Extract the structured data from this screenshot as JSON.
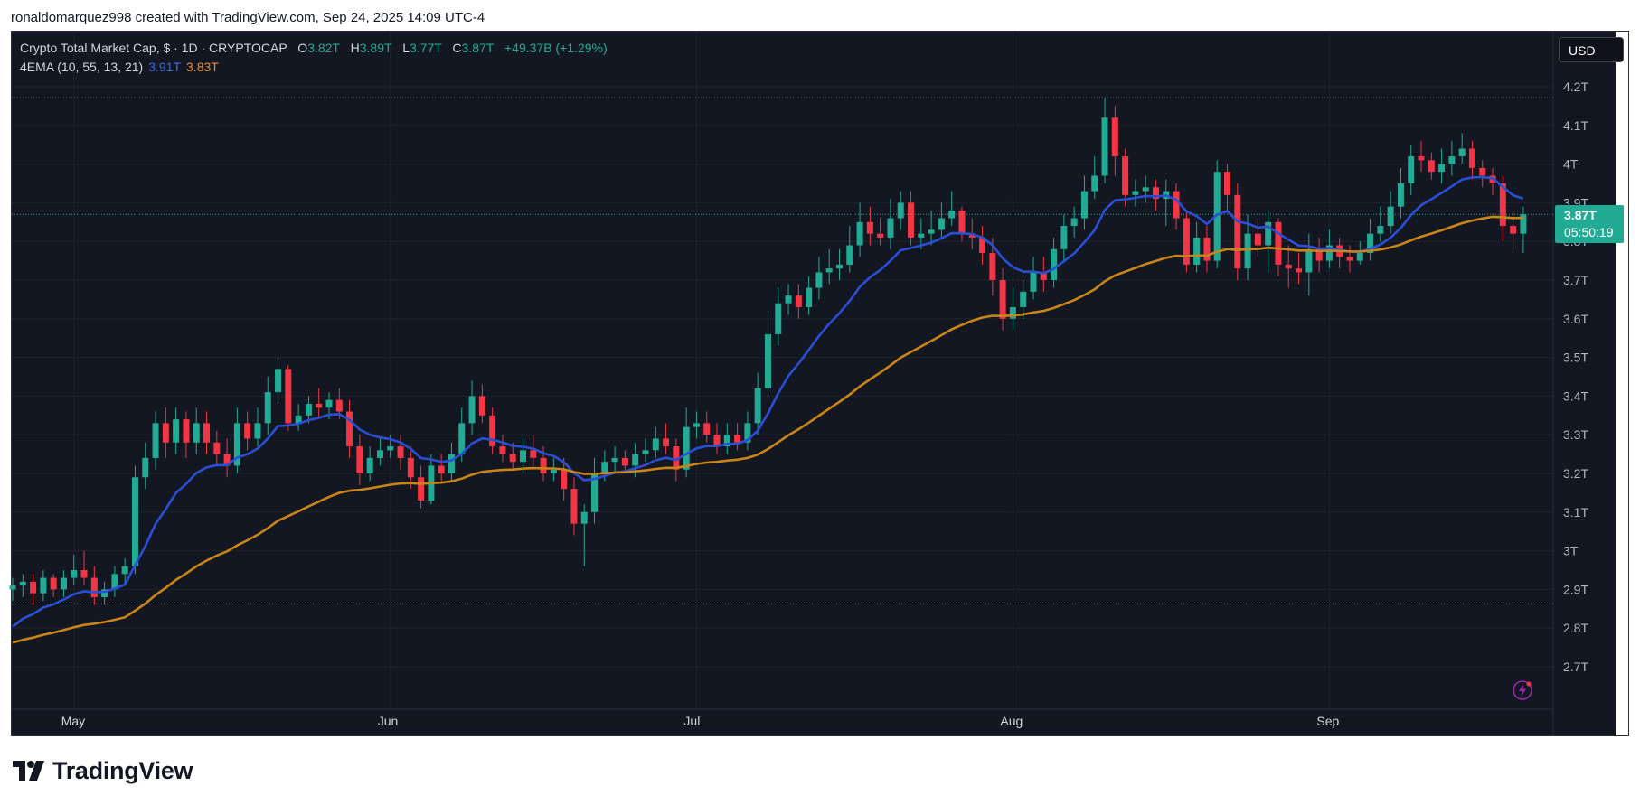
{
  "header": {
    "credit": "ronaldomarquez998 created with TradingView.com, Sep 24, 2025 14:09 UTC-4"
  },
  "legend": {
    "symbol": "Crypto Total Market Cap, $ · 1D · CRYPTOCAP",
    "o_label": "O",
    "o_value": "3.82T",
    "h_label": "H",
    "h_value": "3.89T",
    "l_label": "L",
    "l_value": "3.77T",
    "c_label": "C",
    "c_value": "3.87T",
    "change": "+49.37B (+1.29%)",
    "indicator": "4EMA (10, 55, 13, 21)",
    "ema_fast": "3.91T",
    "ema_slow": "3.83T"
  },
  "toolbar": {
    "currency": "USD"
  },
  "price_tag": {
    "price": "3.87T",
    "countdown": "05:50:19"
  },
  "brand": {
    "name": "TradingView",
    "logo_icon": "tradingview-logo-icon"
  },
  "colors": {
    "up": "#22ab94",
    "down": "#f23645",
    "ema_fast": "#2a4fd6",
    "ema_slow": "#c98516",
    "background": "#131722"
  },
  "chart_data": {
    "type": "candlestick",
    "title": "Crypto Total Market Cap, $ · 1D · CRYPTOCAP",
    "unit": "USD",
    "ylim": [
      2.64,
      4.22
    ],
    "y_ticks": [
      "2.7T",
      "2.8T",
      "2.9T",
      "3T",
      "3.1T",
      "3.2T",
      "3.3T",
      "3.4T",
      "3.5T",
      "3.6T",
      "3.7T",
      "3.8T",
      "3.9T",
      "4T",
      "4.1T",
      "4.2T"
    ],
    "y_tick_values": [
      2.7,
      2.8,
      2.9,
      3.0,
      3.1,
      3.2,
      3.3,
      3.4,
      3.5,
      3.6,
      3.7,
      3.8,
      3.9,
      4.0,
      4.1,
      4.2
    ],
    "x_ticks": [
      {
        "label": "May",
        "date": "2025-05-01"
      },
      {
        "label": "Jun",
        "date": "2025-06-01"
      },
      {
        "label": "Jul",
        "date": "2025-07-01"
      },
      {
        "label": "Aug",
        "date": "2025-08-01"
      },
      {
        "label": "Sep",
        "date": "2025-09-01"
      }
    ],
    "start_date": "2025-04-25",
    "closes": [
      2.91,
      2.92,
      2.89,
      2.93,
      2.9,
      2.93,
      2.95,
      2.93,
      2.88,
      2.9,
      2.94,
      2.96,
      3.19,
      3.24,
      3.33,
      3.28,
      3.34,
      3.28,
      3.33,
      3.28,
      3.25,
      3.22,
      3.33,
      3.29,
      3.33,
      3.41,
      3.47,
      3.33,
      3.35,
      3.38,
      3.37,
      3.39,
      3.36,
      3.27,
      3.2,
      3.24,
      3.26,
      3.27,
      3.24,
      3.19,
      3.13,
      3.22,
      3.2,
      3.25,
      3.33,
      3.4,
      3.35,
      3.27,
      3.25,
      3.23,
      3.26,
      3.24,
      3.2,
      3.21,
      3.16,
      3.07,
      3.1,
      3.2,
      3.23,
      3.24,
      3.22,
      3.25,
      3.26,
      3.29,
      3.27,
      3.21,
      3.32,
      3.33,
      3.3,
      3.27,
      3.3,
      3.28,
      3.33,
      3.42,
      3.56,
      3.64,
      3.66,
      3.63,
      3.68,
      3.72,
      3.73,
      3.74,
      3.79,
      3.85,
      3.82,
      3.81,
      3.86,
      3.9,
      3.81,
      3.82,
      3.83,
      3.86,
      3.88,
      3.82,
      3.81,
      3.77,
      3.7,
      3.6,
      3.63,
      3.67,
      3.72,
      3.7,
      3.78,
      3.84,
      3.86,
      3.93,
      3.97,
      4.12,
      4.02,
      3.92,
      3.93,
      3.94,
      3.91,
      3.93,
      3.86,
      3.74,
      3.81,
      3.75,
      3.98,
      3.92,
      3.73,
      3.82,
      3.79,
      3.85,
      3.74,
      3.73,
      3.72,
      3.78,
      3.75,
      3.79,
      3.76,
      3.75,
      3.77,
      3.82,
      3.84,
      3.89,
      3.95,
      4.02,
      4.01,
      3.98,
      4.0,
      4.02,
      4.04,
      3.99,
      3.97,
      3.95,
      3.84,
      3.82,
      3.87
    ],
    "opens": [
      2.9,
      2.91,
      2.92,
      2.89,
      2.93,
      2.9,
      2.93,
      2.95,
      2.93,
      2.88,
      2.9,
      2.94,
      2.96,
      3.19,
      3.24,
      3.33,
      3.28,
      3.34,
      3.28,
      3.33,
      3.28,
      3.25,
      3.22,
      3.33,
      3.29,
      3.33,
      3.41,
      3.47,
      3.33,
      3.35,
      3.38,
      3.37,
      3.39,
      3.36,
      3.27,
      3.2,
      3.24,
      3.26,
      3.27,
      3.24,
      3.19,
      3.13,
      3.22,
      3.2,
      3.25,
      3.33,
      3.4,
      3.35,
      3.27,
      3.25,
      3.23,
      3.26,
      3.24,
      3.2,
      3.21,
      3.16,
      3.07,
      3.1,
      3.2,
      3.23,
      3.24,
      3.22,
      3.25,
      3.26,
      3.29,
      3.27,
      3.21,
      3.32,
      3.33,
      3.3,
      3.27,
      3.3,
      3.28,
      3.33,
      3.42,
      3.56,
      3.64,
      3.66,
      3.63,
      3.68,
      3.72,
      3.73,
      3.74,
      3.79,
      3.85,
      3.82,
      3.81,
      3.86,
      3.9,
      3.81,
      3.82,
      3.83,
      3.86,
      3.88,
      3.82,
      3.81,
      3.77,
      3.7,
      3.6,
      3.63,
      3.67,
      3.72,
      3.7,
      3.78,
      3.84,
      3.86,
      3.93,
      3.97,
      4.12,
      4.02,
      3.92,
      3.93,
      3.94,
      3.91,
      3.93,
      3.86,
      3.74,
      3.81,
      3.75,
      3.98,
      3.92,
      3.73,
      3.82,
      3.79,
      3.85,
      3.74,
      3.73,
      3.72,
      3.78,
      3.75,
      3.79,
      3.76,
      3.75,
      3.77,
      3.82,
      3.84,
      3.89,
      3.95,
      4.02,
      4.01,
      3.98,
      4.0,
      4.02,
      4.04,
      3.99,
      3.97,
      3.95,
      3.84,
      3.82
    ],
    "highs": [
      2.93,
      2.94,
      2.94,
      2.95,
      2.94,
      2.95,
      2.99,
      3.0,
      2.96,
      2.92,
      2.96,
      2.98,
      3.22,
      3.28,
      3.36,
      3.37,
      3.37,
      3.36,
      3.37,
      3.36,
      3.31,
      3.29,
      3.37,
      3.36,
      3.37,
      3.45,
      3.5,
      3.48,
      3.38,
      3.4,
      3.42,
      3.41,
      3.42,
      3.39,
      3.3,
      3.27,
      3.29,
      3.3,
      3.3,
      3.27,
      3.22,
      3.25,
      3.25,
      3.28,
      3.37,
      3.44,
      3.43,
      3.37,
      3.3,
      3.28,
      3.29,
      3.3,
      3.27,
      3.24,
      3.24,
      3.19,
      3.12,
      3.24,
      3.26,
      3.27,
      3.26,
      3.28,
      3.29,
      3.32,
      3.33,
      3.29,
      3.37,
      3.36,
      3.36,
      3.33,
      3.33,
      3.33,
      3.36,
      3.46,
      3.61,
      3.68,
      3.69,
      3.69,
      3.71,
      3.76,
      3.78,
      3.78,
      3.84,
      3.9,
      3.89,
      3.86,
      3.91,
      3.93,
      3.93,
      3.86,
      3.88,
      3.9,
      3.93,
      3.89,
      3.86,
      3.84,
      3.81,
      3.73,
      3.68,
      3.7,
      3.76,
      3.76,
      3.81,
      3.87,
      3.89,
      3.97,
      4.02,
      4.17,
      4.15,
      4.04,
      3.96,
      3.97,
      3.96,
      3.96,
      3.95,
      3.88,
      3.85,
      3.84,
      4.01,
      4.0,
      3.95,
      3.87,
      3.86,
      3.88,
      3.86,
      3.79,
      3.77,
      3.82,
      3.81,
      3.83,
      3.81,
      3.79,
      3.8,
      3.86,
      3.89,
      3.93,
      3.99,
      4.05,
      4.06,
      4.03,
      4.04,
      4.06,
      4.08,
      4.06,
      4.01,
      3.99,
      3.97,
      3.88,
      3.89
    ],
    "lows": [
      2.87,
      2.88,
      2.86,
      2.87,
      2.88,
      2.88,
      2.91,
      2.91,
      2.86,
      2.86,
      2.88,
      2.91,
      2.94,
      3.16,
      3.21,
      3.24,
      3.25,
      3.24,
      3.25,
      3.25,
      3.22,
      3.19,
      3.2,
      3.26,
      3.27,
      3.3,
      3.38,
      3.31,
      3.31,
      3.33,
      3.34,
      3.34,
      3.34,
      3.24,
      3.17,
      3.18,
      3.22,
      3.24,
      3.21,
      3.16,
      3.11,
      3.12,
      3.18,
      3.18,
      3.23,
      3.3,
      3.33,
      3.25,
      3.23,
      3.21,
      3.2,
      3.22,
      3.18,
      3.18,
      3.13,
      3.04,
      2.96,
      3.07,
      3.18,
      3.2,
      3.2,
      3.19,
      3.23,
      3.24,
      3.25,
      3.18,
      3.19,
      3.29,
      3.28,
      3.25,
      3.25,
      3.26,
      3.26,
      3.3,
      3.4,
      3.53,
      3.61,
      3.6,
      3.61,
      3.65,
      3.69,
      3.7,
      3.72,
      3.76,
      3.79,
      3.79,
      3.78,
      3.83,
      3.79,
      3.78,
      3.79,
      3.81,
      3.84,
      3.8,
      3.78,
      3.74,
      3.66,
      3.57,
      3.57,
      3.6,
      3.65,
      3.67,
      3.68,
      3.75,
      3.81,
      3.83,
      3.91,
      3.95,
      3.97,
      3.89,
      3.89,
      3.9,
      3.88,
      3.84,
      3.83,
      3.72,
      3.72,
      3.72,
      3.73,
      3.88,
      3.7,
      3.7,
      3.76,
      3.72,
      3.71,
      3.68,
      3.69,
      3.66,
      3.72,
      3.73,
      3.73,
      3.72,
      3.74,
      3.75,
      3.8,
      3.82,
      3.86,
      3.92,
      3.98,
      3.96,
      3.95,
      3.97,
      4.0,
      3.96,
      3.94,
      3.92,
      3.8,
      3.78,
      3.77
    ],
    "series": [
      {
        "name": "4EMA (10, 55, 13, 21)",
        "color": "#2a4fd6",
        "label_value": "3.91T",
        "start": 2.78,
        "smoothing": 0.18
      },
      {
        "name": "4EMA (10, 55, 13, 21)",
        "color": "#c98516",
        "label_value": "3.83T",
        "start": 2.755,
        "smoothing": 0.047
      }
    ]
  }
}
